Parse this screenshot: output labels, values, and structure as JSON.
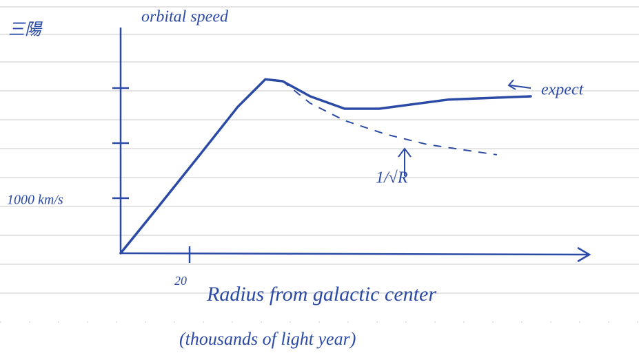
{
  "chart_data": {
    "type": "line",
    "corner_note": "三陽",
    "y_label": "orbital speed",
    "x_label": "Radius from galactic center",
    "x_label_note": "(thousands of light year)",
    "xlim": [
      0,
      140
    ],
    "ylim": [
      0,
      4000
    ],
    "xticks": [
      20
    ],
    "yticks": [
      {
        "value": 1000,
        "label": "1000 km/s"
      }
    ],
    "minor_yticks": [
      2000,
      3000
    ],
    "series": [
      {
        "color": "#2b4aa6",
        "style": "solid",
        "x": [
          0,
          11,
          23,
          34,
          42,
          47,
          55,
          65,
          75,
          95,
          119
        ],
        "values": [
          0,
          850,
          1790,
          2660,
          3160,
          3125,
          2850,
          2625,
          2625,
          2790,
          2850
        ]
      },
      {
        "color": "#2b4aa6",
        "style": "dashed",
        "x": [
          47,
          55,
          65,
          77,
          89,
          109
        ],
        "values": [
          3125,
          2725,
          2410,
          2160,
          1975,
          1790
        ]
      }
    ],
    "annotations": [
      {
        "text": "expect",
        "x": 122,
        "y": 2950
      },
      {
        "text": "1/√R",
        "x": 74,
        "y": 1350
      }
    ]
  }
}
